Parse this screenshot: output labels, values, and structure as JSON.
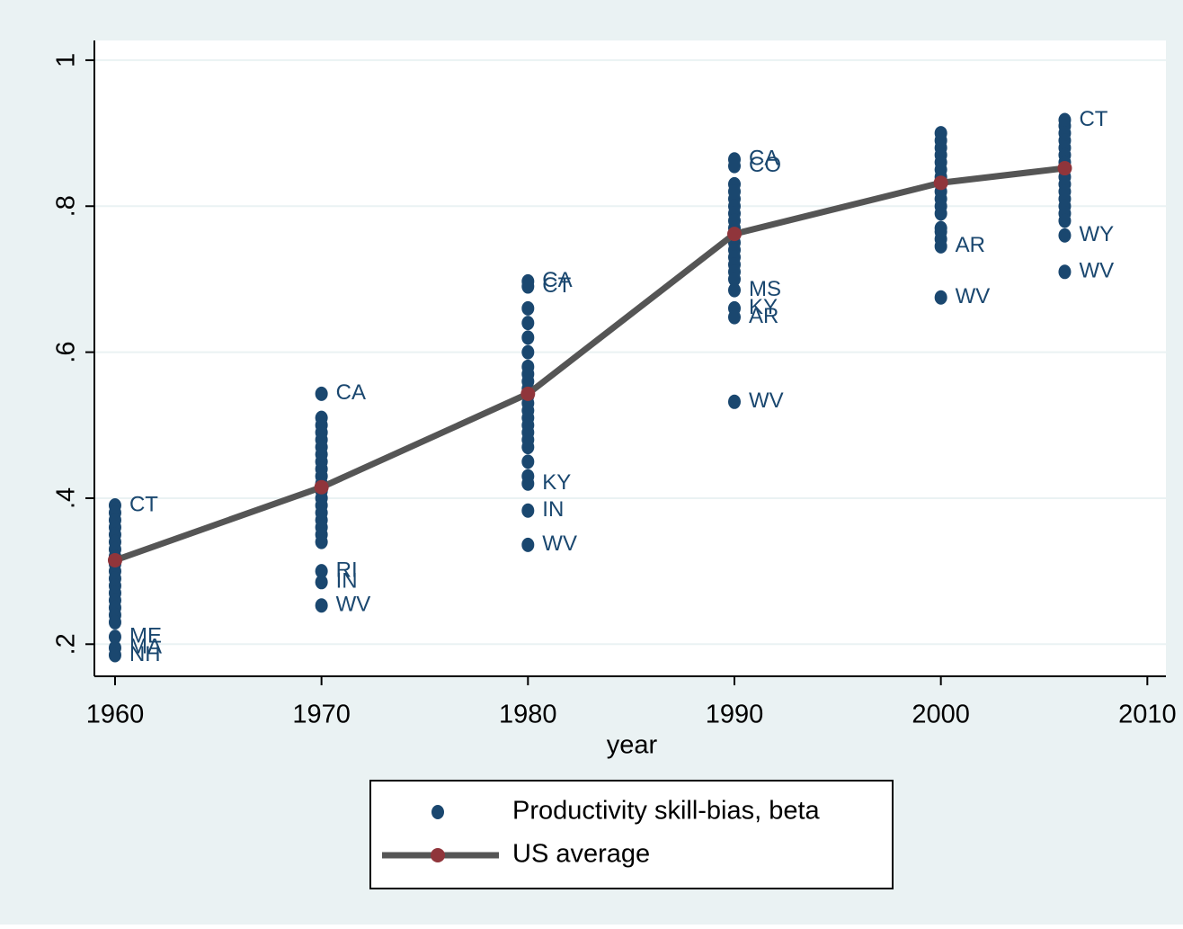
{
  "chart_data": {
    "type": "scatter",
    "x_label": "year",
    "xlim": [
      1959,
      2010.9
    ],
    "ylim": [
      0.156,
      1.027
    ],
    "xticks": [
      1960,
      1970,
      1980,
      1990,
      2000,
      2010
    ],
    "yticks": [
      {
        "value": 0.2,
        "label": ".2"
      },
      {
        "value": 0.4,
        "label": ".4"
      },
      {
        "value": 0.6,
        "label": ".6"
      },
      {
        "value": 0.8,
        "label": ".8"
      },
      1
    ],
    "grid": true,
    "legend": "bottom",
    "series": [
      {
        "name": "Productivity skill-bias, beta",
        "color": "#1a476f",
        "groups": [
          {
            "x": 1960,
            "values": [
              0.39,
              0.38,
              0.37,
              0.36,
              0.35,
              0.34,
              0.33,
              0.32,
              0.31,
              0.3,
              0.29,
              0.28,
              0.27,
              0.26,
              0.25,
              0.24,
              0.23,
              0.21,
              0.195,
              0.185
            ],
            "point_labels": [
              "CT",
              null,
              null,
              null,
              null,
              null,
              null,
              null,
              null,
              null,
              null,
              null,
              null,
              null,
              null,
              null,
              null,
              "ME",
              "MA",
              "NH"
            ]
          },
          {
            "x": 1970,
            "values": [
              0.543,
              0.51,
              0.5,
              0.49,
              0.48,
              0.47,
              0.46,
              0.45,
              0.44,
              0.43,
              0.42,
              0.41,
              0.4,
              0.39,
              0.38,
              0.37,
              0.36,
              0.35,
              0.34,
              0.3,
              0.285,
              0.253
            ],
            "point_labels": [
              "CA",
              null,
              null,
              null,
              null,
              null,
              null,
              null,
              null,
              null,
              null,
              null,
              null,
              null,
              null,
              null,
              null,
              null,
              null,
              "RI",
              "IN",
              "WV"
            ]
          },
          {
            "x": 1980,
            "values": [
              0.697,
              0.69,
              0.66,
              0.64,
              0.62,
              0.6,
              0.58,
              0.57,
              0.56,
              0.55,
              0.54,
              0.53,
              0.52,
              0.51,
              0.5,
              0.49,
              0.48,
              0.47,
              0.45,
              0.43,
              0.42,
              0.383,
              0.336
            ],
            "point_labels": [
              "CA",
              "CT",
              null,
              null,
              null,
              null,
              null,
              null,
              null,
              null,
              null,
              null,
              null,
              null,
              null,
              null,
              null,
              null,
              null,
              null,
              "KY",
              "IN",
              "WV"
            ]
          },
          {
            "x": 1990,
            "values": [
              0.864,
              0.855,
              0.83,
              0.82,
              0.81,
              0.8,
              0.79,
              0.78,
              0.77,
              0.76,
              0.75,
              0.74,
              0.73,
              0.72,
              0.71,
              0.7,
              0.685,
              0.66,
              0.648,
              0.532
            ],
            "point_labels": [
              "CA",
              "CO",
              null,
              null,
              null,
              null,
              null,
              null,
              null,
              null,
              null,
              null,
              null,
              null,
              null,
              null,
              "MS",
              "KY",
              "AR",
              "WV"
            ]
          },
          {
            "x": 2000,
            "values": [
              0.9,
              0.89,
              0.88,
              0.87,
              0.86,
              0.85,
              0.84,
              0.83,
              0.82,
              0.81,
              0.8,
              0.79,
              0.77,
              0.765,
              0.755,
              0.745,
              0.675
            ],
            "point_labels": [
              null,
              null,
              null,
              null,
              null,
              null,
              null,
              null,
              null,
              null,
              null,
              null,
              null,
              null,
              null,
              "AR",
              "WV"
            ]
          },
          {
            "x": 2006,
            "values": [
              0.918,
              0.91,
              0.9,
              0.89,
              0.88,
              0.87,
              0.86,
              0.85,
              0.84,
              0.83,
              0.82,
              0.81,
              0.8,
              0.79,
              0.78,
              0.76,
              0.71
            ],
            "point_labels": [
              "CT",
              null,
              null,
              null,
              null,
              null,
              null,
              null,
              null,
              null,
              null,
              null,
              null,
              null,
              null,
              "WY",
              "WV"
            ]
          }
        ]
      },
      {
        "name": "US average",
        "type": "line",
        "color": "#555555",
        "marker_color": "#90353b",
        "x": [
          1960,
          1970,
          1980,
          1990,
          2000,
          2006
        ],
        "values": [
          0.315,
          0.415,
          0.543,
          0.762,
          0.832,
          0.852
        ]
      }
    ]
  }
}
